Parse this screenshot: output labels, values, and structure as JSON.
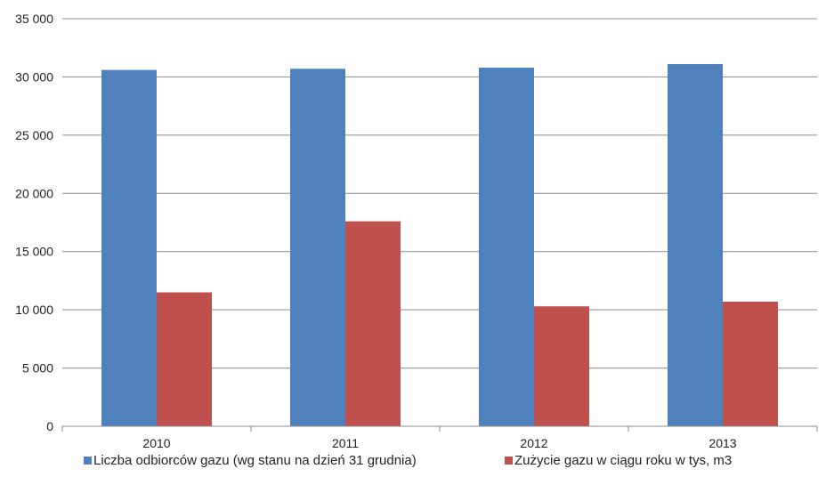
{
  "chart_data": {
    "type": "bar",
    "categories": [
      "2010",
      "2011",
      "2012",
      "2013"
    ],
    "series": [
      {
        "name": "Liczba odbiorców gazu (wg stanu na dzień 31 grudnia)",
        "color": "#4F81BD",
        "values": [
          30600,
          30700,
          30800,
          31100
        ]
      },
      {
        "name": "Zużycie gazu w ciągu roku w tys, m3",
        "color": "#C0504D",
        "values": [
          11500,
          17600,
          10300,
          10700
        ]
      }
    ],
    "ylim": [
      0,
      35000
    ],
    "yticks": [
      0,
      5000,
      10000,
      15000,
      20000,
      25000,
      30000,
      35000
    ],
    "ytick_labels": [
      "0",
      "5 000",
      "10 000",
      "15 000",
      "20 000",
      "25 000",
      "30 000",
      "35 000"
    ],
    "grid": true,
    "legend_position": "bottom",
    "title": "",
    "xlabel": "",
    "ylabel": ""
  }
}
